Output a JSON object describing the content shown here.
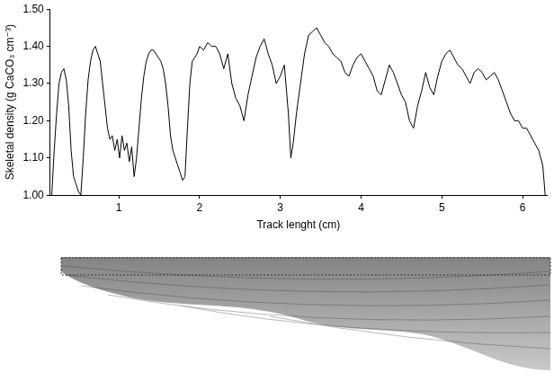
{
  "chart_data": {
    "type": "line",
    "y_label": "Skeletal density (g CaCO₃ cm⁻³)",
    "x_label": "Track lenght (cm)",
    "color": "#000000",
    "grid": false,
    "xlim": [
      0.15,
      6.3
    ],
    "xticks": [
      1,
      2,
      3,
      4,
      5,
      6
    ],
    "ylim": [
      1.0,
      1.5
    ],
    "yticks": [
      {
        "value": 1.0,
        "label": "1.00"
      },
      {
        "value": 1.1,
        "label": "1.10"
      },
      {
        "value": 1.2,
        "label": "1.20"
      },
      {
        "value": 1.3,
        "label": "1.30"
      },
      {
        "value": 1.4,
        "label": "1.40"
      },
      {
        "value": 1.5,
        "label": "1.50"
      }
    ],
    "x": [
      0.17,
      0.2,
      0.23,
      0.26,
      0.29,
      0.32,
      0.35,
      0.38,
      0.41,
      0.44,
      0.47,
      0.5,
      0.53,
      0.56,
      0.59,
      0.62,
      0.65,
      0.68,
      0.71,
      0.74,
      0.77,
      0.8,
      0.83,
      0.86,
      0.89,
      0.92,
      0.95,
      0.98,
      1.01,
      1.04,
      1.07,
      1.1,
      1.13,
      1.16,
      1.19,
      1.22,
      1.25,
      1.28,
      1.31,
      1.34,
      1.37,
      1.4,
      1.43,
      1.46,
      1.49,
      1.52,
      1.55,
      1.58,
      1.61,
      1.64,
      1.67,
      1.7,
      1.73,
      1.76,
      1.79,
      1.82,
      1.85,
      1.88,
      1.91,
      1.94,
      1.97,
      2.0,
      2.05,
      2.1,
      2.15,
      2.2,
      2.25,
      2.3,
      2.35,
      2.4,
      2.45,
      2.5,
      2.55,
      2.6,
      2.65,
      2.7,
      2.75,
      2.8,
      2.85,
      2.9,
      2.95,
      3.0,
      3.05,
      3.1,
      3.13,
      3.16,
      3.2,
      3.25,
      3.3,
      3.35,
      3.4,
      3.45,
      3.5,
      3.55,
      3.6,
      3.65,
      3.7,
      3.75,
      3.8,
      3.85,
      3.9,
      3.95,
      4.0,
      4.05,
      4.1,
      4.15,
      4.2,
      4.25,
      4.3,
      4.35,
      4.4,
      4.45,
      4.5,
      4.55,
      4.6,
      4.65,
      4.7,
      4.75,
      4.8,
      4.85,
      4.9,
      4.95,
      5.0,
      5.05,
      5.1,
      5.15,
      5.2,
      5.25,
      5.3,
      5.35,
      5.4,
      5.45,
      5.5,
      5.55,
      5.6,
      5.65,
      5.7,
      5.75,
      5.8,
      5.85,
      5.9,
      5.95,
      6.0,
      6.05,
      6.1,
      6.15,
      6.2,
      6.25,
      6.28
    ],
    "values": [
      1.0,
      1.12,
      1.22,
      1.3,
      1.33,
      1.34,
      1.31,
      1.24,
      1.12,
      1.05,
      1.03,
      1.01,
      1.0,
      1.1,
      1.22,
      1.31,
      1.36,
      1.39,
      1.4,
      1.38,
      1.36,
      1.3,
      1.24,
      1.18,
      1.15,
      1.16,
      1.12,
      1.15,
      1.1,
      1.16,
      1.12,
      1.14,
      1.09,
      1.13,
      1.05,
      1.1,
      1.18,
      1.26,
      1.32,
      1.36,
      1.38,
      1.39,
      1.39,
      1.38,
      1.37,
      1.36,
      1.34,
      1.3,
      1.24,
      1.16,
      1.12,
      1.1,
      1.08,
      1.06,
      1.04,
      1.05,
      1.18,
      1.3,
      1.36,
      1.37,
      1.38,
      1.4,
      1.39,
      1.41,
      1.4,
      1.4,
      1.38,
      1.34,
      1.38,
      1.3,
      1.26,
      1.24,
      1.2,
      1.27,
      1.32,
      1.37,
      1.4,
      1.42,
      1.38,
      1.35,
      1.3,
      1.32,
      1.35,
      1.22,
      1.1,
      1.14,
      1.22,
      1.3,
      1.38,
      1.43,
      1.44,
      1.45,
      1.43,
      1.41,
      1.4,
      1.38,
      1.37,
      1.36,
      1.33,
      1.32,
      1.35,
      1.37,
      1.38,
      1.36,
      1.34,
      1.32,
      1.28,
      1.27,
      1.31,
      1.35,
      1.33,
      1.3,
      1.27,
      1.25,
      1.2,
      1.18,
      1.24,
      1.28,
      1.33,
      1.29,
      1.27,
      1.32,
      1.36,
      1.38,
      1.39,
      1.37,
      1.35,
      1.34,
      1.32,
      1.3,
      1.33,
      1.34,
      1.33,
      1.31,
      1.32,
      1.33,
      1.31,
      1.28,
      1.25,
      1.22,
      1.2,
      1.2,
      1.18,
      1.18,
      1.16,
      1.14,
      1.12,
      1.08,
      1.0
    ]
  }
}
